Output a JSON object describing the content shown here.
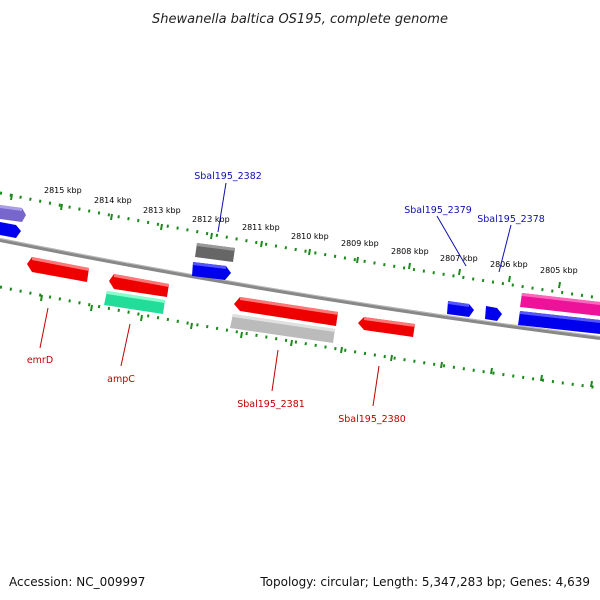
{
  "title": "Shewanella baltica OS195, complete genome",
  "footer": {
    "accession": "Accession: NC_009997",
    "summary": "Topology: circular; Length: 5,347,283 bp; Genes: 4,639"
  },
  "tick_labels": [
    "2815 kbp",
    "2814 kbp",
    "2813 kbp",
    "2812 kbp",
    "2811 kbp",
    "2810 kbp",
    "2809 kbp",
    "2808 kbp",
    "2807 kbp",
    "2806 kbp",
    "2805 kbp"
  ],
  "gene_labels": {
    "sbal195_2382": "Sbal195_2382",
    "sbal195_2379": "Sbal195_2379",
    "sbal195_2378": "Sbal195_2378",
    "emrD": "emrD",
    "ampC": "ampC",
    "sbal195_2381": "Sbal195_2381",
    "sbal195_2380": "Sbal195_2380"
  },
  "colors": {
    "backbone": "#888888",
    "tick_dots": "#1a8a1a",
    "forward_gene": "#0000ee",
    "reverse_gene": "#ee0000",
    "rna_gene": "#22dd99",
    "pseudo_gene": "#bbbbbb",
    "magenta_gene": "#ee1199",
    "purple_gene": "#7766cc",
    "dark_gene": "#666666",
    "blue_label": "#1010b0",
    "red_label": "#c00000"
  }
}
